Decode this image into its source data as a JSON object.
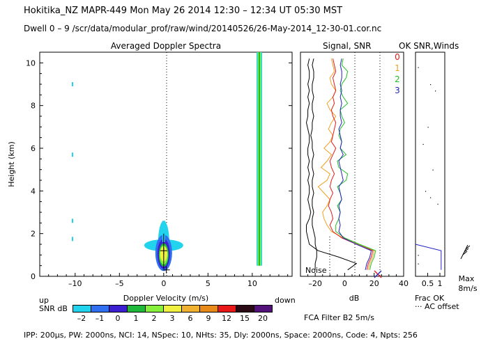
{
  "header": {
    "line1": "Hokitika_NZ   MAPR-449  Mon May 26 2014 12:30 – 12:34 UT 05:30 MST",
    "line2": "Dwell  0 –  9   /scr/data/modular_prof/raw/wind/20140526/26-May-2014_12-30-01.cor.nc"
  },
  "footer": {
    "params": "IPP: 200μs,  PW: 2000ns,  NCI:  14,  NSpec: 10, NHts: 35,  Dly: 2000ns,  Space: 2000ns,  Code: 4,  Npts: 256",
    "fca": "FCA Filter B2  5m/s"
  },
  "colorbar": {
    "up": "up",
    "down": "down",
    "label": "SNR dB",
    "ticks": [
      "–2",
      "–1",
      "0",
      "1",
      "2",
      "3",
      "6",
      "9",
      "12",
      "15",
      "20"
    ],
    "colors": [
      "#22d3ee",
      "#2f6ff0",
      "#3b1fd1",
      "#1fb83a",
      "#86f03c",
      "#f0f040",
      "#f0b030",
      "#e88a1a",
      "#e81818",
      "#2a0a14",
      "#52127a"
    ]
  },
  "chart_data": [
    {
      "type": "heatmap",
      "title": "Averaged Doppler Spectra",
      "xlabel": "Doppler Velocity (m/s)",
      "ylabel": "Height (km)",
      "xlim": [
        -14,
        14.5
      ],
      "ylim": [
        0,
        10.5
      ],
      "xticks": [
        "–10",
        "–5",
        "0",
        "5",
        "10"
      ],
      "yticks": [
        "0",
        "2",
        "4",
        "6",
        "8",
        "10"
      ],
      "ground_clutter": {
        "velocity": 0,
        "height_range": [
          0.2,
          2.5
        ],
        "peak_snr_db": 3
      },
      "interference_band": {
        "velocity": 10.8,
        "height_range": [
          0.5,
          10.5
        ],
        "snr_db": 1
      },
      "markers": [
        {
          "v": 0,
          "h": 1.2
        },
        {
          "v": 0.3,
          "h": 0.3
        }
      ]
    },
    {
      "type": "line",
      "title": "Signal, SNR",
      "xlabel": "dB",
      "xlim": [
        -30,
        40
      ],
      "xticks": [
        "–20",
        "0",
        "20",
        "40"
      ],
      "noise_label": "Noise",
      "series_labels": [
        {
          "name": "0",
          "color": "#e81818"
        },
        {
          "name": "1",
          "color": "#f0a020"
        },
        {
          "name": "2",
          "color": "#22c022"
        },
        {
          "name": "3",
          "color": "#2222c0"
        }
      ],
      "heights": [
        0.3,
        0.6,
        0.9,
        1.2,
        1.5,
        1.8,
        2.1,
        2.4,
        2.7,
        3.0,
        3.3,
        3.6,
        3.9,
        4.2,
        4.5,
        4.8,
        5.1,
        5.4,
        5.7,
        6.0,
        6.3,
        6.6,
        6.9,
        7.2,
        7.5,
        7.8,
        8.1,
        8.4,
        8.7,
        9.0,
        9.3,
        9.6,
        9.9,
        10.2
      ],
      "noise": [
        -20,
        -20,
        -19,
        -19,
        -20,
        -20,
        -21,
        -22,
        -22,
        -21,
        -22,
        -22,
        -21,
        -22,
        -22,
        -21,
        -22,
        -22,
        -21,
        -22,
        -22,
        -23,
        -22,
        -22,
        -21,
        -22,
        -22,
        -21,
        -22,
        -22,
        -21,
        -21,
        -22,
        -21
      ],
      "signal": [
        2,
        8,
        -4,
        -18,
        -24,
        -25,
        -26,
        -26,
        -24,
        -23,
        -24,
        -25,
        -24,
        -24,
        -25,
        -24,
        -25,
        -24,
        -25,
        -25,
        -24,
        -24,
        -25,
        -26,
        -25,
        -25,
        -24,
        -25,
        -24,
        -25,
        -24,
        -24,
        -25,
        -24
      ],
      "snr0": [
        15,
        16,
        18,
        19,
        8,
        -2,
        -8,
        -10,
        -8,
        -9,
        -11,
        -10,
        -8,
        -10,
        -9,
        -7,
        -9,
        -10,
        -8,
        -6,
        -9,
        -8,
        -7,
        -6,
        -8,
        -9,
        -7,
        -8,
        -6,
        -7,
        -8,
        -6,
        -7,
        -8
      ],
      "snr1": [
        16,
        17,
        19,
        20,
        9,
        -1,
        -9,
        -12,
        -14,
        -15,
        -12,
        -10,
        -14,
        -18,
        -12,
        -10,
        -16,
        -12,
        -9,
        -14,
        -10,
        -8,
        -11,
        -9,
        -6,
        -10,
        -12,
        -8,
        -6,
        -9,
        -10,
        -7,
        -8,
        -9
      ],
      "snr2": [
        17,
        18,
        20,
        21,
        10,
        0,
        -6,
        -6,
        -4,
        -3,
        -5,
        -2,
        -3,
        -5,
        1,
        2,
        -4,
        -5,
        1,
        -3,
        -2,
        -4,
        -3,
        0,
        -2,
        -3,
        2,
        -1,
        -3,
        -2,
        1,
        2,
        -2,
        -1
      ],
      "snr3": [
        14,
        15,
        17,
        18,
        8,
        -1,
        -4,
        -3,
        -4,
        -3,
        -4,
        -2,
        -3,
        -4,
        -1,
        -2,
        -3,
        -4,
        -1,
        -3,
        -2,
        -3,
        -4,
        -2,
        -3,
        -3,
        -2,
        -3,
        -2,
        -3,
        -2,
        -2,
        -3,
        -2
      ]
    },
    {
      "type": "scatter",
      "title": "OK SNR,Winds",
      "xlabel_frac": "Frac OK",
      "xlabel_ac": "··· AC offset",
      "xlim": [
        0,
        1.2
      ],
      "xticks": [
        "0.5",
        "1"
      ],
      "max_label": "Max",
      "max_value": "8m/s",
      "ac_offset_points": [
        {
          "x": 0.1,
          "h": 9.8
        },
        {
          "x": 0.6,
          "h": 9.0
        },
        {
          "x": 0.8,
          "h": 8.7
        },
        {
          "x": 0.5,
          "h": 7.0
        },
        {
          "x": 0.3,
          "h": 6.2
        },
        {
          "x": 0.7,
          "h": 5.0
        },
        {
          "x": 0.4,
          "h": 4.0
        },
        {
          "x": 0.6,
          "h": 3.7
        },
        {
          "x": 0.9,
          "h": 3.4
        },
        {
          "x": 0.1,
          "h": 1.0
        },
        {
          "x": 0.1,
          "h": 0.6
        }
      ],
      "frac_ok_line": [
        {
          "x": 0.0,
          "h": 1.5
        },
        {
          "x": 1.05,
          "h": 1.2
        },
        {
          "x": 1.05,
          "h": 0.3
        }
      ]
    }
  ]
}
